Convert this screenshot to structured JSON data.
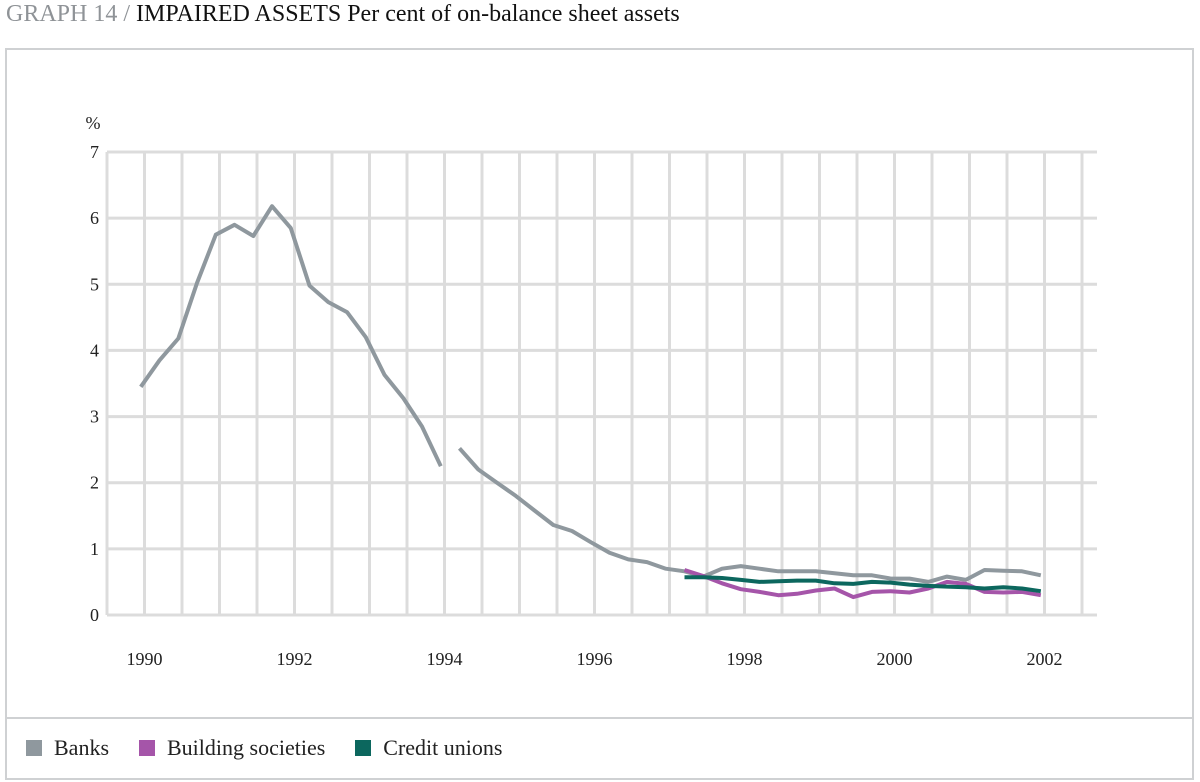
{
  "title": {
    "graph_number": "GRAPH 14",
    "separator": "/",
    "bold": "IMPAIRED ASSETS",
    "subtitle": "Per cent of on-balance sheet assets"
  },
  "colors": {
    "banks": "#8f989e",
    "building_societies": "#a555a9",
    "credit_unions": "#0c675e",
    "grid": "#dcdcdc"
  },
  "chart_data": {
    "type": "line",
    "title": "IMPAIRED ASSETS Per cent of on-balance sheet assets",
    "ylabel": "%",
    "xlabel": "",
    "ylim": [
      0,
      7
    ],
    "yticks": [
      0,
      1,
      2,
      3,
      4,
      5,
      6,
      7
    ],
    "xlim": [
      1989.5,
      2002.7
    ],
    "xticks": [
      1990,
      1992,
      1994,
      1996,
      1998,
      2000,
      2002
    ],
    "grid": true,
    "legend_position": "bottom",
    "series": [
      {
        "name": "Banks",
        "color_key": "banks",
        "segments": [
          [
            [
              1989.95,
              3.45
            ],
            [
              1990.2,
              3.85
            ],
            [
              1990.45,
              4.18
            ],
            [
              1990.7,
              5.02
            ],
            [
              1990.95,
              5.75
            ],
            [
              1991.2,
              5.9
            ],
            [
              1991.45,
              5.73
            ],
            [
              1991.7,
              6.18
            ],
            [
              1991.95,
              5.85
            ],
            [
              1992.2,
              4.98
            ],
            [
              1992.45,
              4.73
            ],
            [
              1992.7,
              4.58
            ],
            [
              1992.95,
              4.2
            ],
            [
              1993.2,
              3.63
            ],
            [
              1993.45,
              3.28
            ],
            [
              1993.7,
              2.85
            ],
            [
              1993.95,
              2.25
            ]
          ],
          [
            [
              1994.2,
              2.52
            ],
            [
              1994.45,
              2.2
            ],
            [
              1994.7,
              2.0
            ],
            [
              1994.95,
              1.8
            ],
            [
              1995.2,
              1.58
            ],
            [
              1995.45,
              1.36
            ],
            [
              1995.7,
              1.27
            ],
            [
              1995.95,
              1.1
            ],
            [
              1996.2,
              0.94
            ],
            [
              1996.45,
              0.84
            ],
            [
              1996.7,
              0.8
            ],
            [
              1996.95,
              0.7
            ],
            [
              1997.2,
              0.66
            ],
            [
              1997.45,
              0.58
            ],
            [
              1997.7,
              0.7
            ],
            [
              1997.95,
              0.74
            ],
            [
              1998.2,
              0.7
            ],
            [
              1998.45,
              0.66
            ],
            [
              1998.7,
              0.66
            ],
            [
              1998.95,
              0.66
            ],
            [
              1999.2,
              0.63
            ],
            [
              1999.45,
              0.6
            ],
            [
              1999.7,
              0.6
            ],
            [
              1999.95,
              0.55
            ],
            [
              2000.2,
              0.55
            ],
            [
              2000.45,
              0.5
            ],
            [
              2000.7,
              0.58
            ],
            [
              2000.95,
              0.53
            ],
            [
              2001.2,
              0.68
            ],
            [
              2001.45,
              0.67
            ],
            [
              2001.7,
              0.66
            ],
            [
              2001.95,
              0.6
            ]
          ]
        ]
      },
      {
        "name": "Building societies",
        "color_key": "building_societies",
        "segments": [
          [
            [
              1997.2,
              0.68
            ],
            [
              1997.45,
              0.59
            ],
            [
              1997.7,
              0.48
            ],
            [
              1997.95,
              0.39
            ],
            [
              1998.2,
              0.35
            ],
            [
              1998.45,
              0.3
            ],
            [
              1998.7,
              0.32
            ],
            [
              1998.95,
              0.37
            ],
            [
              1999.2,
              0.4
            ],
            [
              1999.45,
              0.27
            ],
            [
              1999.7,
              0.35
            ],
            [
              1999.95,
              0.36
            ],
            [
              2000.2,
              0.34
            ],
            [
              2000.45,
              0.4
            ],
            [
              2000.7,
              0.5
            ],
            [
              2000.95,
              0.47
            ],
            [
              2001.2,
              0.35
            ],
            [
              2001.45,
              0.34
            ],
            [
              2001.7,
              0.35
            ],
            [
              2001.95,
              0.3
            ]
          ]
        ]
      },
      {
        "name": "Credit unions",
        "color_key": "credit_unions",
        "segments": [
          [
            [
              1997.2,
              0.57
            ],
            [
              1997.45,
              0.57
            ],
            [
              1997.7,
              0.56
            ],
            [
              1997.95,
              0.53
            ],
            [
              1998.2,
              0.5
            ],
            [
              1998.45,
              0.51
            ],
            [
              1998.7,
              0.52
            ],
            [
              1998.95,
              0.52
            ],
            [
              1999.2,
              0.48
            ],
            [
              1999.45,
              0.47
            ],
            [
              1999.7,
              0.5
            ],
            [
              1999.95,
              0.49
            ],
            [
              2000.2,
              0.46
            ],
            [
              2000.45,
              0.44
            ],
            [
              2000.7,
              0.43
            ],
            [
              2000.95,
              0.42
            ],
            [
              2001.2,
              0.4
            ],
            [
              2001.45,
              0.42
            ],
            [
              2001.7,
              0.4
            ],
            [
              2001.95,
              0.36
            ]
          ]
        ]
      }
    ]
  }
}
